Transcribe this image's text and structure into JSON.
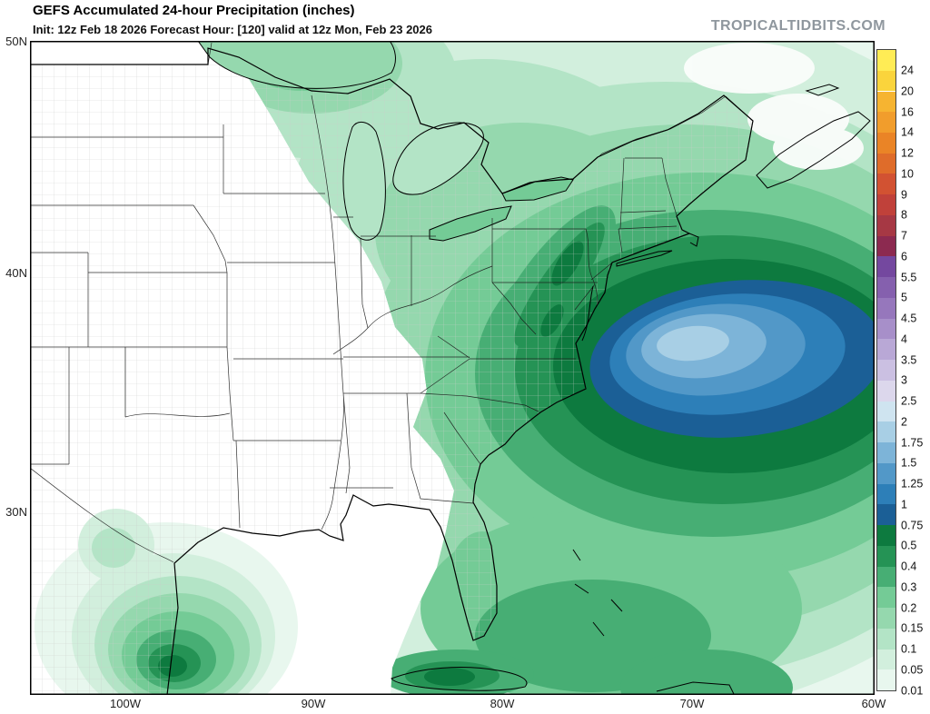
{
  "header": {
    "title": "GEFS Accumulated 24-hour Precipitation (inches)",
    "subtitle": "Init: 12z Feb 18 2026   Forecast Hour: [120]   valid at 12z Mon, Feb 23 2026",
    "watermark": "TROPICALTIDBITS.COM"
  },
  "colorbar": {
    "units": "inches",
    "levels": [
      "0.01",
      "0.05",
      "0.1",
      "0.15",
      "0.2",
      "0.3",
      "0.4",
      "0.5",
      "0.75",
      "1",
      "1.25",
      "1.5",
      "1.75",
      "2",
      "2.5",
      "3",
      "3.5",
      "4",
      "4.5",
      "5",
      "5.5",
      "6",
      "7",
      "8",
      "9",
      "10",
      "12",
      "14",
      "16",
      "20",
      "24"
    ],
    "colors": [
      "#e8f7ee",
      "#d2efdd",
      "#b3e4c6",
      "#95d8ae",
      "#74cb96",
      "#47ae74",
      "#259355",
      "#0d7a3f",
      "#1b5f96",
      "#2d7fb8",
      "#5298c8",
      "#7db4d8",
      "#a8cfe5",
      "#cfe4f0",
      "#dcd7ec",
      "#cbc0e2",
      "#b9a8d6",
      "#a78fc9",
      "#9677bc",
      "#8560ae",
      "#74489f",
      "#8c2a50",
      "#a63844",
      "#c0413a",
      "#d25232",
      "#df6c2a",
      "#ea8426",
      "#f19d2c",
      "#f6b431",
      "#fad43c",
      "#ffec55"
    ]
  },
  "map": {
    "lat_labels": [
      "50N",
      "40N",
      "30N"
    ],
    "lon_labels": [
      "100W",
      "90W",
      "80W",
      "70W",
      "60W"
    ],
    "line_colors": {
      "coast": "#000000",
      "state": "#1a1a1a",
      "county": "#c9cdc9"
    }
  }
}
